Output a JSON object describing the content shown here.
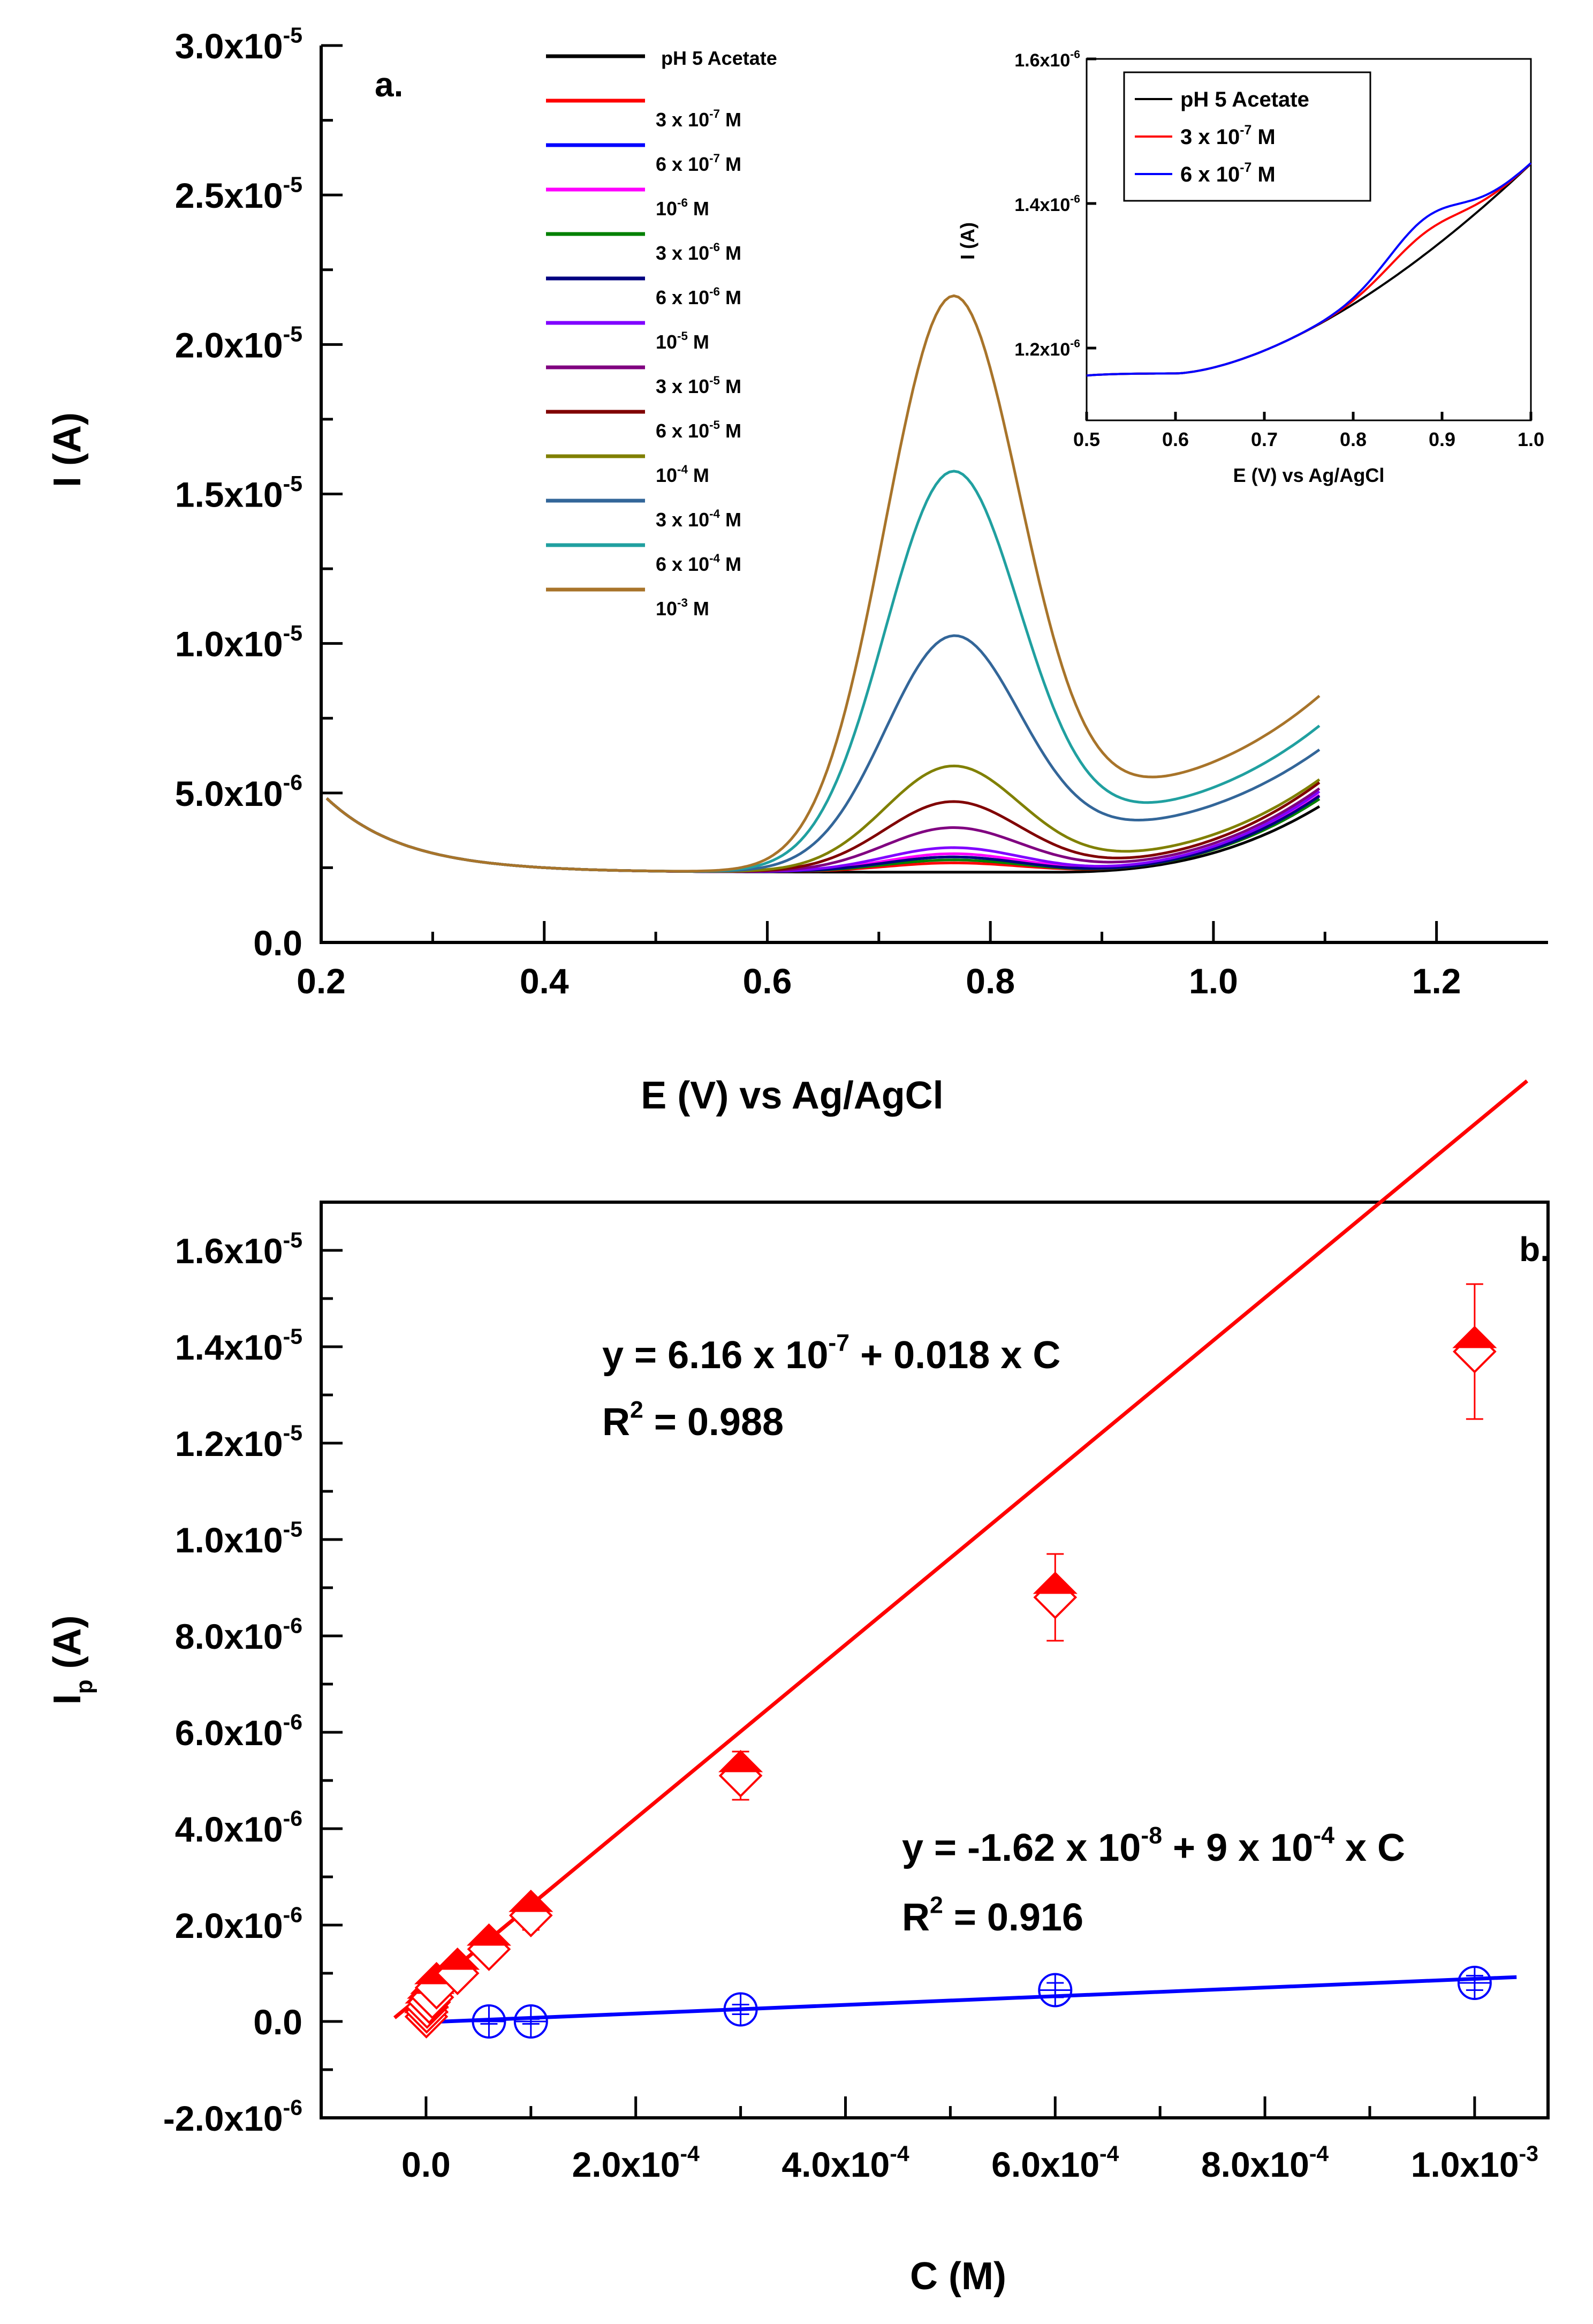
{
  "chart_data": [
    {
      "panel": "a.",
      "type": "line",
      "xlabel": "E (V) vs Ag/AgCl",
      "ylabel": "I (A)",
      "xlim": [
        0.2,
        1.3
      ],
      "ylim": [
        0,
        3e-05
      ],
      "xticks": [
        "0.2",
        "0.4",
        "0.6",
        "0.8",
        "1.0",
        "1.2"
      ],
      "xtick_values": [
        0.2,
        0.4,
        0.6,
        0.8,
        1.0,
        1.2
      ],
      "yticks": [
        {
          "mant": "0.0",
          "exp": "",
          "value": 0
        },
        {
          "mant": "5.0x10",
          "exp": "-6",
          "value": 5e-06
        },
        {
          "mant": "1.0x10",
          "exp": "-5",
          "value": 1e-05
        },
        {
          "mant": "1.5x10",
          "exp": "-5",
          "value": 1.5e-05
        },
        {
          "mant": "2.0x10",
          "exp": "-5",
          "value": 2e-05
        },
        {
          "mant": "2.5x10",
          "exp": "-5",
          "value": 2.5e-05
        },
        {
          "mant": "3.0x10",
          "exp": "-5",
          "value": 3e-05
        }
      ],
      "series": [
        {
          "pre": "pH 5 Acetate",
          "exp": "",
          "post": "",
          "color": "#000000",
          "peak": 0.0,
          "bump": 0.0,
          "tail": 5.2e-06,
          "rise": 0.0
        },
        {
          "pre": "3 x 10",
          "exp": "-7",
          "post": "M",
          "color": "#ff0000",
          "peak": 3e-07,
          "bump": 5e-08,
          "tail": 5.4e-06,
          "rise": 0.0
        },
        {
          "pre": "6 x 10",
          "exp": "-7",
          "post": "M",
          "color": "#0000ff",
          "peak": 5e-07,
          "bump": 5e-08,
          "tail": 5.5e-06,
          "rise": 0.0
        },
        {
          "pre": "10",
          "exp": "-6",
          "post": "M",
          "color": "#ff00ff",
          "peak": 6e-07,
          "bump": 8e-08,
          "tail": 5.5e-06,
          "rise": 0.0
        },
        {
          "pre": "3 x 10",
          "exp": "-6",
          "post": "M",
          "color": "#008000",
          "peak": 4e-07,
          "bump": 5e-08,
          "tail": 5.4e-06,
          "rise": 0.0
        },
        {
          "pre": "6 x 10",
          "exp": "-6",
          "post": "M",
          "color": "#000080",
          "peak": 5e-07,
          "bump": 5e-08,
          "tail": 5.5e-06,
          "rise": 0.0
        },
        {
          "pre": "10",
          "exp": "-5",
          "post": "M",
          "color": "#8000ff",
          "peak": 8e-07,
          "bump": 1e-07,
          "tail": 5.6e-06,
          "rise": 0.0
        },
        {
          "pre": "3 x 10",
          "exp": "-5",
          "post": "M",
          "color": "#800080",
          "peak": 1.45e-06,
          "bump": 2e-07,
          "tail": 5.6e-06,
          "rise": 0.0
        },
        {
          "pre": "6 x 10",
          "exp": "-5",
          "post": "M",
          "color": "#800000",
          "peak": 2.3e-06,
          "bump": 3e-07,
          "tail": 5.7e-06,
          "rise": 0.0
        },
        {
          "pre": "10",
          "exp": "-4",
          "post": "M",
          "color": "#808000",
          "peak": 3.45e-06,
          "bump": 5e-07,
          "tail": 5.6e-06,
          "rise": 0.0
        },
        {
          "pre": "3 x 10",
          "exp": "-4",
          "post": "M",
          "color": "#336699",
          "peak": 7.6e-06,
          "bump": 1.5e-06,
          "tail": 5.6e-06,
          "rise": 0.0
        },
        {
          "pre": "6 x 10",
          "exp": "-4",
          "post": "M",
          "color": "#20a0a0",
          "peak": 1.3e-05,
          "bump": 2e-06,
          "tail": 5.9e-06,
          "rise": 0.0
        },
        {
          "pre": "10",
          "exp": "-3",
          "post": "M",
          "color": "#a8742a",
          "peak": 1.87e-05,
          "bump": 2.8e-06,
          "tail": 6.1e-06,
          "rise": 0.0
        }
      ],
      "inset": {
        "xlabel": "E (V) vs Ag/AgCl",
        "ylabel": "I (A)",
        "xlim": [
          0.5,
          1.0
        ],
        "ylim": [
          1.1e-06,
          1.6e-06
        ],
        "xticks": [
          "0.5",
          "0.6",
          "0.7",
          "0.8",
          "0.9",
          "1.0"
        ],
        "xtick_values": [
          0.5,
          0.6,
          0.7,
          0.8,
          0.9,
          1.0
        ],
        "yticks": [
          {
            "mant": "1.2x10",
            "exp": "-6",
            "value": 1.2e-06
          },
          {
            "mant": "1.4x10",
            "exp": "-6",
            "value": 1.4e-06
          },
          {
            "mant": "1.6x10",
            "exp": "-6",
            "value": 1.6e-06
          }
        ],
        "series": [
          {
            "pre": "pH 5 Acetate",
            "exp": "",
            "post": "",
            "color": "#000000",
            "peak": 0.0
          },
          {
            "pre": "3 x 10",
            "exp": "-7",
            "post": " M",
            "color": "#ff0000",
            "peak": 3e-08
          },
          {
            "pre": "6 x 10",
            "exp": "-7",
            "post": " M",
            "color": "#0000ff",
            "peak": 5e-08
          }
        ]
      }
    },
    {
      "panel": "b.",
      "type": "scatter",
      "xlabel": "C (M)",
      "ylabel_main": "I",
      "ylabel_sub": "p",
      "ylabel_unit": " (A)",
      "xlim": [
        -0.0001,
        0.00107
      ],
      "ylim": [
        -2e-06,
        1.7e-05
      ],
      "xticks": [
        {
          "mant": "0.0",
          "exp": "",
          "value": 0
        },
        {
          "mant": "2.0x10",
          "exp": "-4",
          "value": 0.0002
        },
        {
          "mant": "4.0x10",
          "exp": "-4",
          "value": 0.0004
        },
        {
          "mant": "6.0x10",
          "exp": "-4",
          "value": 0.0006
        },
        {
          "mant": "8.0x10",
          "exp": "-4",
          "value": 0.0008
        },
        {
          "mant": "1.0x10",
          "exp": "-3",
          "value": 0.001
        }
      ],
      "yticks": [
        {
          "mant": "-2.0x10",
          "exp": "-6",
          "value": -2e-06
        },
        {
          "mant": "0.0",
          "exp": "",
          "value": 0
        },
        {
          "mant": "2.0x10",
          "exp": "-6",
          "value": 2e-06
        },
        {
          "mant": "4.0x10",
          "exp": "-6",
          "value": 4e-06
        },
        {
          "mant": "6.0x10",
          "exp": "-6",
          "value": 6e-06
        },
        {
          "mant": "8.0x10",
          "exp": "-6",
          "value": 8e-06
        },
        {
          "mant": "1.0x10",
          "exp": "-5",
          "value": 1e-05
        },
        {
          "mant": "1.2x10",
          "exp": "-5",
          "value": 1.2e-05
        },
        {
          "mant": "1.4x10",
          "exp": "-5",
          "value": 1.4e-05
        },
        {
          "mant": "1.6x10",
          "exp": "-5",
          "value": 1.6e-05
        }
      ],
      "series": [
        {
          "name": "red",
          "color": "#ff0000",
          "marker": "diamond",
          "x": [
            3e-07,
            6e-07,
            1e-06,
            3e-06,
            6e-06,
            1e-05,
            3e-05,
            6e-05,
            0.0001,
            0.0003,
            0.0006,
            0.001
          ],
          "y": [
            1e-07,
            2e-07,
            3e-07,
            4e-07,
            5e-07,
            7e-07,
            1e-06,
            1.5e-06,
            2.2e-06,
            5.1e-06,
            8.8e-06,
            1.39e-05
          ],
          "err": [
            5e-08,
            5e-08,
            5e-08,
            1e-07,
            1e-07,
            1e-07,
            1.5e-07,
            2e-07,
            3e-07,
            5e-07,
            9e-07,
            1.4e-06
          ],
          "fit": {
            "intercept": 6.16e-07,
            "slope": 0.018,
            "x_start": -3e-05,
            "x_end": 0.00105
          }
        },
        {
          "name": "blue",
          "color": "#0000ff",
          "marker": "circle-plus",
          "x": [
            6e-05,
            0.0001,
            0.0003,
            0.0006,
            0.001
          ],
          "y": [
            0.0,
            0.0,
            2.5e-07,
            6.5e-07,
            8e-07
          ],
          "err": [
            5e-08,
            5e-08,
            1e-07,
            1.5e-07,
            1.5e-07
          ],
          "fit": {
            "intercept": -1.62e-08,
            "slope": 0.0009,
            "x_start": 1e-05,
            "x_end": 0.00104
          }
        }
      ],
      "equations": [
        {
          "pre": "y = 6.16 x 10",
          "exp": "-7",
          "post": " + 0.018 x C",
          "color": "#ff0000"
        },
        {
          "pre": "R",
          "exp": "2",
          "post": " = 0.988",
          "color": "#ff0000"
        },
        {
          "pre": "y = -1.62 x 10",
          "exp": "-8",
          "post": " + 9 x 10",
          "exp2": "-4",
          "post2": " x C",
          "color": "#0000ff"
        },
        {
          "pre": "R",
          "exp": "2",
          "post": " = 0.916",
          "color": "#0000ff"
        }
      ]
    }
  ]
}
